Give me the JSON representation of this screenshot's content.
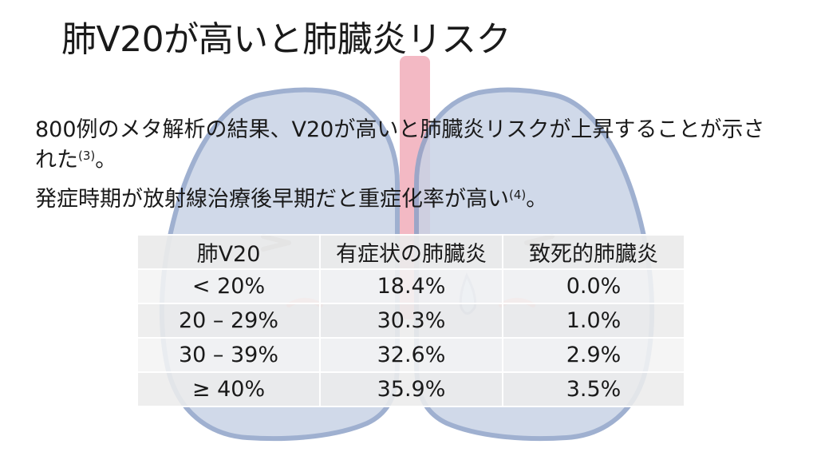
{
  "slide": {
    "title": "肺V20が高いと肺臓炎リスク",
    "paragraphs": [
      {
        "text": "800例のメタ解析の結果、V20が高いと肺臓炎リスクが上昇することが示された",
        "ref": "(3)",
        "tail": "。"
      },
      {
        "text": "発症時期が放射線治療後早期だと重症化率が高い",
        "ref": "(4)",
        "tail": "。"
      }
    ],
    "table": {
      "headers": [
        "肺V20",
        "有症状の肺臓炎",
        "致死的肺臓炎"
      ],
      "rows": [
        [
          "< 20%",
          "18.4%",
          "0.0%"
        ],
        [
          "20 – 29%",
          "30.3%",
          "1.0%"
        ],
        [
          "30 – 39%",
          "32.6%",
          "2.9%"
        ],
        [
          "≥ 40%",
          "35.9%",
          "3.5%"
        ]
      ]
    },
    "background": {
      "icon": "lungs-illustration-icon",
      "lung_color": "#c8d3e6",
      "lung_outline": "#8fa3c8",
      "trachea_color": "#f3b9c4",
      "cheek_color": "#f2a6a6",
      "tear_color": "#bfe1f2"
    }
  }
}
